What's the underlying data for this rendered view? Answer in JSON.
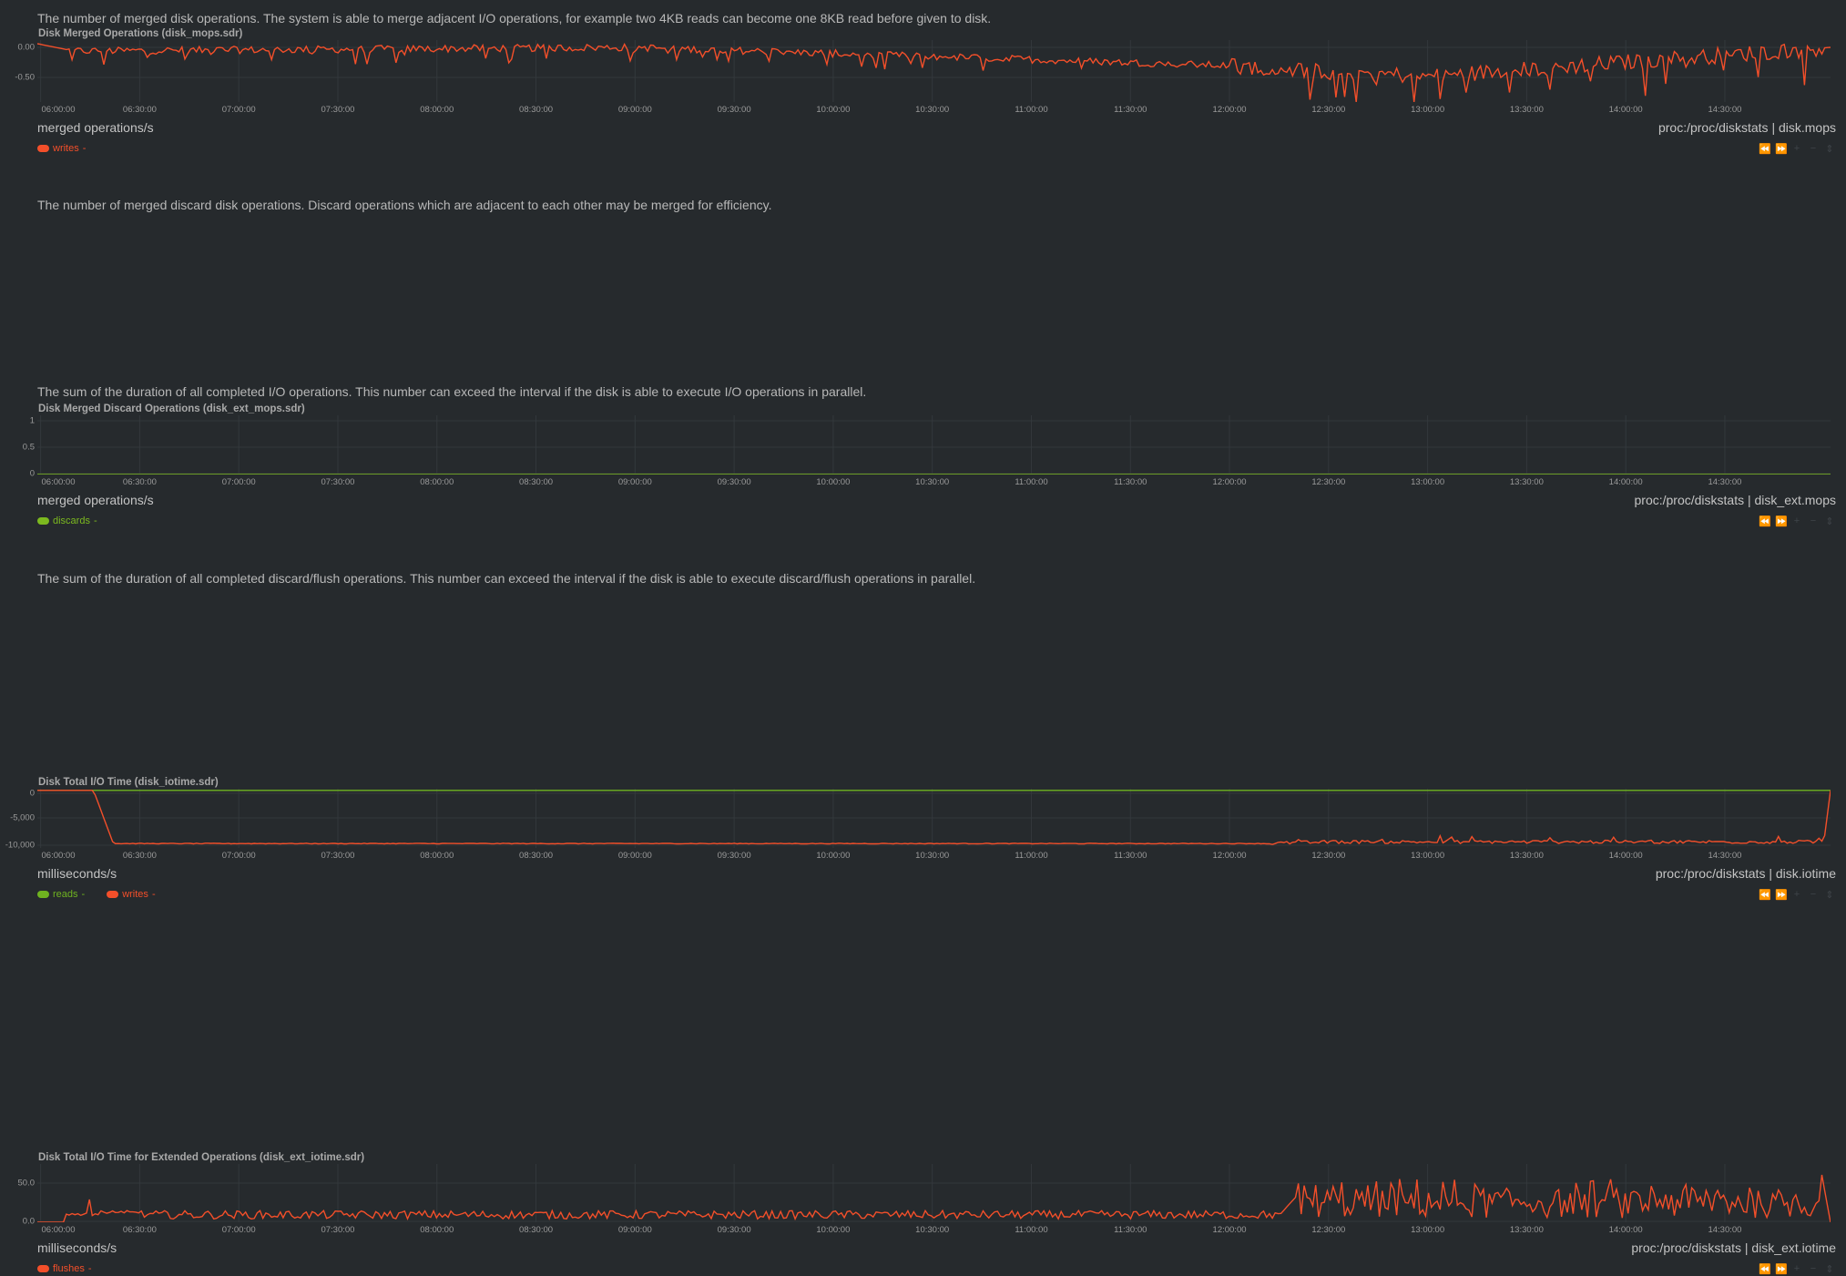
{
  "x_ticks": [
    "06:00:00",
    "06:30:00",
    "07:00:00",
    "07:30:00",
    "08:00:00",
    "08:30:00",
    "09:00:00",
    "09:30:00",
    "10:00:00",
    "10:30:00",
    "11:00:00",
    "11:30:00",
    "12:00:00",
    "12:30:00",
    "13:00:00",
    "13:30:00",
    "14:00:00",
    "14:30:00"
  ],
  "colors": {
    "background": "#262a2d",
    "grid": "#33383c",
    "writes": "#f34f2a",
    "reads": "#6fb320",
    "discards": "#7cb91f",
    "flushes": "#f34f2a"
  },
  "controls_icons": [
    "rewind-icon",
    "fast-forward-icon",
    "zoom-in-icon",
    "zoom-out-icon",
    "resize-icon"
  ],
  "charts": [
    {
      "description": "The number of merged disk operations. The system is able to merge adjacent I/O operations, for example two 4KB reads can become one 8KB read before given to disk.",
      "title": "Disk Merged Operations (disk_mops.sdr)",
      "units": "merged operations/s",
      "source": "proc:/proc/diskstats | disk.mops",
      "y_ticks": [
        "0.00",
        "-0.50"
      ],
      "legend": [
        {
          "name": "writes",
          "suffix": "-",
          "color": "#f34f2a"
        }
      ]
    },
    {
      "description": "The number of merged discard disk operations. Discard operations which are adjacent to each other may be merged for efficiency.",
      "title": "Disk Merged Discard Operations (disk_ext_mops.sdr)",
      "units": "merged operations/s",
      "source": "proc:/proc/diskstats | disk_ext.mops",
      "y_ticks": [
        "1",
        "0.5",
        "0"
      ],
      "legend": [
        {
          "name": "discards",
          "suffix": "-",
          "color": "#7cb91f"
        }
      ]
    },
    {
      "description": "The sum of the duration of all completed I/O operations. This number can exceed the interval if the disk is able to execute I/O operations in parallel.",
      "title": "Disk Total I/O Time (disk_iotime.sdr)",
      "units": "milliseconds/s",
      "source": "proc:/proc/diskstats | disk.iotime",
      "y_ticks": [
        "0",
        "-5,000",
        "-10,000"
      ],
      "legend": [
        {
          "name": "reads",
          "suffix": "-",
          "color": "#6fb320"
        },
        {
          "name": "writes",
          "suffix": "-",
          "color": "#f34f2a"
        }
      ]
    },
    {
      "description": "The sum of the duration of all completed discard/flush operations. This number can exceed the interval if the disk is able to execute discard/flush operations in parallel.",
      "title": "Disk Total I/O Time for Extended Operations (disk_ext_iotime.sdr)",
      "units": "milliseconds/s",
      "source": "proc:/proc/diskstats | disk_ext.iotime",
      "y_ticks": [
        "50.0",
        "0.0"
      ],
      "legend": [
        {
          "name": "flushes",
          "suffix": "-",
          "color": "#f34f2a"
        }
      ]
    }
  ],
  "chart_data": [
    {
      "type": "line",
      "title": "Disk Merged Operations (disk_mops.sdr)",
      "ylabel": "merged operations/s",
      "x_range": [
        "05:59:00",
        "15:02:00"
      ],
      "ylim": [
        -0.8,
        0.05
      ],
      "grid": true,
      "legend_placement": "bottom-left",
      "series": [
        {
          "name": "writes",
          "color": "#f34f2a",
          "pattern": "noisy negative series with frequent downward spikes",
          "segments": [
            {
              "x": "05:59:00",
              "y": 0.0
            },
            {
              "x": "06:10:00",
              "y": -0.1
            },
            {
              "x": "09:00:00",
              "y": -0.05
            },
            {
              "x": "12:00:00",
              "y": -0.3
            },
            {
              "x": "13:00:00",
              "y": -0.45
            },
            {
              "x": "15:02:00",
              "y": -0.05
            }
          ]
        }
      ]
    },
    {
      "type": "line",
      "title": "Disk Merged Discard Operations (disk_ext_mops.sdr)",
      "ylabel": "merged operations/s",
      "x_range": [
        "05:59:00",
        "15:02:00"
      ],
      "ylim": [
        0,
        1
      ],
      "grid": true,
      "legend_placement": "bottom-left",
      "series": [
        {
          "name": "discards",
          "color": "#7cb91f",
          "constant": 0
        }
      ]
    },
    {
      "type": "line",
      "title": "Disk Total I/O Time (disk_iotime.sdr)",
      "ylabel": "milliseconds/s",
      "x_range": [
        "05:59:00",
        "15:02:00"
      ],
      "ylim": [
        -10500,
        300
      ],
      "grid": true,
      "legend_placement": "bottom-left",
      "series": [
        {
          "name": "reads",
          "color": "#6fb320",
          "constant": 0
        },
        {
          "name": "writes",
          "color": "#f34f2a",
          "segments": [
            {
              "x": "05:59:00",
              "y": 0
            },
            {
              "x": "06:16:00",
              "y": 0
            },
            {
              "x": "06:22:00",
              "y": -9700
            },
            {
              "x": "12:10:00",
              "y": -9700
            },
            {
              "x": "12:30:00",
              "y": -9400
            },
            {
              "x": "15:00:00",
              "y": -9400
            },
            {
              "x": "15:02:00",
              "y": 0
            }
          ]
        }
      ]
    },
    {
      "type": "line",
      "title": "Disk Total I/O Time for Extended Operations (disk_ext_iotime.sdr)",
      "ylabel": "milliseconds/s",
      "x_range": [
        "05:59:00",
        "15:02:00"
      ],
      "ylim": [
        0,
        70
      ],
      "grid": true,
      "legend_placement": "bottom-left",
      "series": [
        {
          "name": "flushes",
          "color": "#f34f2a",
          "segments": [
            {
              "x": "05:59:00",
              "y": 0
            },
            {
              "x": "06:09:00",
              "y": 30
            },
            {
              "x": "06:20:00",
              "y": 25
            },
            {
              "x": "06:30:00",
              "y": 8
            },
            {
              "x": "12:15:00",
              "y": 8
            },
            {
              "x": "12:20:00",
              "y": 30
            },
            {
              "x": "14:59:00",
              "y": 65
            },
            {
              "x": "15:02:00",
              "y": 0
            }
          ]
        }
      ]
    }
  ]
}
